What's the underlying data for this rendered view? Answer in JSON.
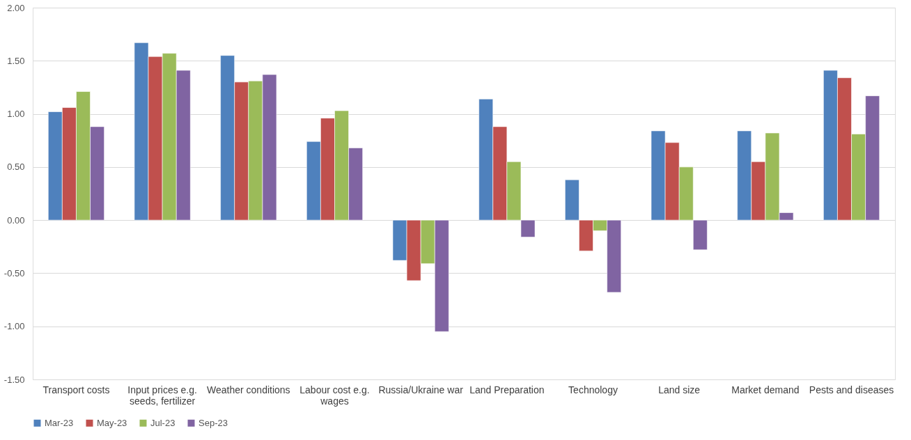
{
  "chart_data": {
    "type": "bar",
    "categories": [
      "Transport costs",
      "Input prices e.g. seeds, fertilizer",
      "Weather conditions",
      "Labour cost e.g. wages",
      "Russia/Ukraine war",
      "Land Preparation",
      "Technology",
      "Land size",
      "Market demand",
      "Pests and diseases"
    ],
    "series": [
      {
        "name": "Mar-23",
        "color": "#4f81bd",
        "values": [
          1.02,
          1.67,
          1.55,
          0.74,
          -0.38,
          1.14,
          0.38,
          0.84,
          0.84,
          1.41
        ]
      },
      {
        "name": "May-23",
        "color": "#c0504d",
        "values": [
          1.06,
          1.54,
          1.3,
          0.96,
          -0.57,
          0.88,
          -0.29,
          0.73,
          0.55,
          1.34
        ]
      },
      {
        "name": "Jul-23",
        "color": "#9bbb59",
        "values": [
          1.21,
          1.57,
          1.31,
          1.03,
          -0.41,
          0.55,
          -0.1,
          0.5,
          0.82,
          0.81
        ]
      },
      {
        "name": "Sep-23",
        "color": "#8064a2",
        "values": [
          0.88,
          1.41,
          1.37,
          0.68,
          -1.05,
          -0.16,
          -0.68,
          -0.28,
          0.07,
          1.17
        ]
      }
    ],
    "ylim": [
      -1.5,
      2.0
    ],
    "yticks": [
      {
        "value": -1.5,
        "label": "-1.50"
      },
      {
        "value": -1.0,
        "label": "-1.00"
      },
      {
        "value": -0.5,
        "label": "-0.50"
      },
      {
        "value": 0,
        "label": "0.00"
      },
      {
        "value": 0.5,
        "label": "0.50"
      },
      {
        "value": 1.0,
        "label": "1.00"
      },
      {
        "value": 1.5,
        "label": "1.50"
      },
      {
        "value": 2.0,
        "label": "2.00"
      }
    ],
    "grid": "y",
    "legend": "bottom"
  }
}
